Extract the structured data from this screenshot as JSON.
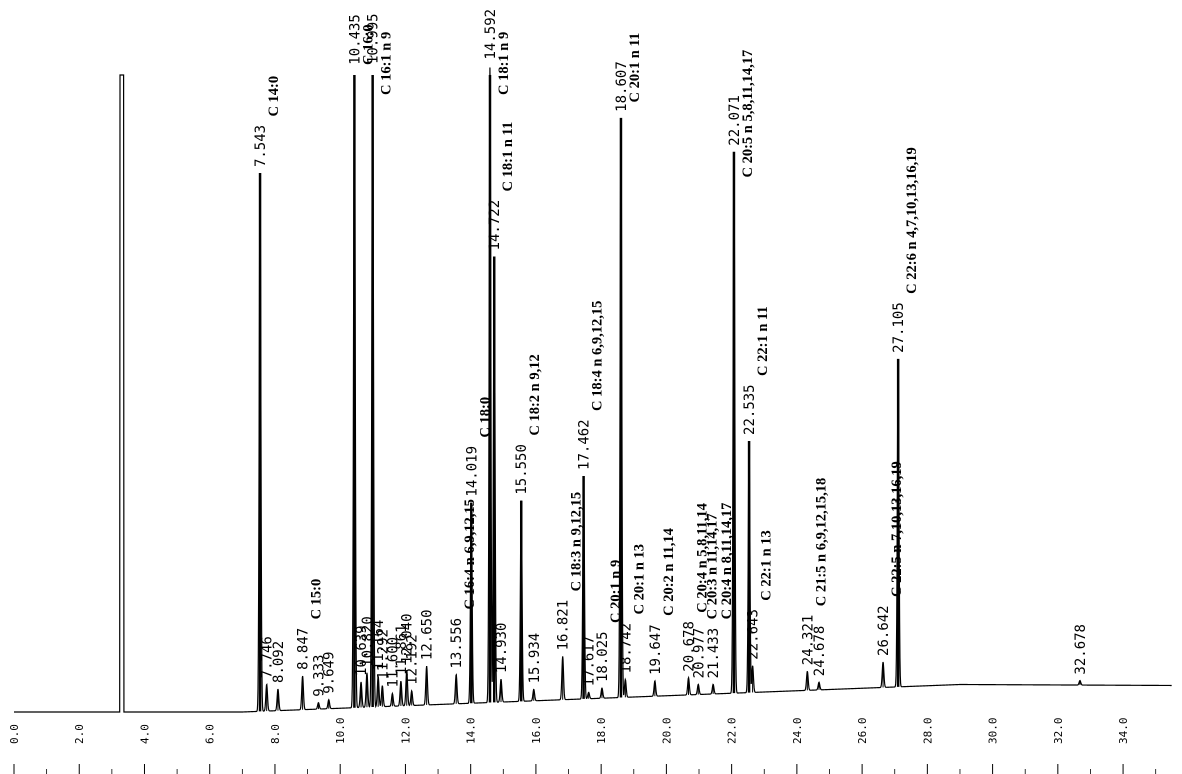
{
  "chart_data": {
    "type": "line",
    "title": "",
    "xlabel": "",
    "ylabel": "",
    "xlim": [
      0,
      35.5
    ],
    "ylim": [
      0,
      100
    ],
    "x_ticks": [
      "0.0",
      "2.0",
      "4.0",
      "6.0",
      "8.0",
      "10.0",
      "12.0",
      "14.0",
      "16.0",
      "18.0",
      "20.0",
      "22.0",
      "24.0",
      "26.0",
      "28.0",
      "30.0",
      "32.0",
      "34.0"
    ],
    "solvent_peak": {
      "rt": 3.3,
      "height": 100
    },
    "peaks": [
      {
        "rt": 7.543,
        "label": "7.543",
        "height": 84.5,
        "name": "C 14:0"
      },
      {
        "rt": 7.746,
        "label": "7.746",
        "height": 4.2,
        "name": ""
      },
      {
        "rt": 8.092,
        "label": "8.092",
        "height": 3.4,
        "name": ""
      },
      {
        "rt": 8.847,
        "label": "8.847",
        "height": 5.3,
        "name": "C 15:0"
      },
      {
        "rt": 9.333,
        "label": "9.333",
        "height": 1.0,
        "name": ""
      },
      {
        "rt": 9.649,
        "label": "9.649",
        "height": 1.4,
        "name": ""
      },
      {
        "rt": 10.435,
        "label": "10.435",
        "height": 100,
        "name": "C 16:0"
      },
      {
        "rt": 10.639,
        "label": "10.639",
        "height": 4.0,
        "name": ""
      },
      {
        "rt": 10.82,
        "label": "10.820",
        "height": 5.4,
        "name": ""
      },
      {
        "rt": 10.995,
        "label": "10.995",
        "height": 100,
        "name": "C 16:1 n 9"
      },
      {
        "rt": 11.164,
        "label": "11.164",
        "height": 4.8,
        "name": ""
      },
      {
        "rt": 11.292,
        "label": "11.292",
        "height": 3.3,
        "name": ""
      },
      {
        "rt": 11.6,
        "label": "11.600",
        "height": 2.0,
        "name": ""
      },
      {
        "rt": 11.861,
        "label": "11.861",
        "height": 3.9,
        "name": ""
      },
      {
        "rt": 12.04,
        "label": "12.040",
        "height": 5.6,
        "name": ""
      },
      {
        "rt": 12.192,
        "label": "12.192",
        "height": 2.3,
        "name": ""
      },
      {
        "rt": 12.65,
        "label": "12.650",
        "height": 6.1,
        "name": ""
      },
      {
        "rt": 13.556,
        "label": "13.556",
        "height": 4.6,
        "name": "C 16:4 n 6,9,12,15"
      },
      {
        "rt": 14.019,
        "label": "14.019",
        "height": 31.5,
        "name": "C 18:0"
      },
      {
        "rt": 14.592,
        "label": "14.592",
        "height": 100,
        "name": "C 18:1 n 9"
      },
      {
        "rt": 14.722,
        "label": "14.722",
        "height": 70.0,
        "name": "C 18:1 n 11"
      },
      {
        "rt": 14.93,
        "label": "14.930",
        "height": 3.6,
        "name": ""
      },
      {
        "rt": 15.55,
        "label": "15.550",
        "height": 31.5,
        "name": "C 18:2 n 9,12"
      },
      {
        "rt": 15.934,
        "label": "15.934",
        "height": 1.8,
        "name": ""
      },
      {
        "rt": 16.821,
        "label": "16.821",
        "height": 6.8,
        "name": "C 18:3 n 9,12,15"
      },
      {
        "rt": 17.462,
        "label": "17.462",
        "height": 35.0,
        "name": "C 18:4 n 6,9,12,15"
      },
      {
        "rt": 17.617,
        "label": "17.617",
        "height": 1.0,
        "name": ""
      },
      {
        "rt": 18.025,
        "label": "18.025",
        "height": 1.6,
        "name": "C 20:1 n 9"
      },
      {
        "rt": 18.607,
        "label": "18.607",
        "height": 91.0,
        "name": "C 20:1 n 11"
      },
      {
        "rt": 18.742,
        "label": "18.742",
        "height": 2.8,
        "name": "C 20:1 n 13"
      },
      {
        "rt": 19.647,
        "label": "19.647",
        "height": 2.4,
        "name": "C 20:2 n 11,14"
      },
      {
        "rt": 20.678,
        "label": "20.678",
        "height": 2.7,
        "name": "C 20:4 n 5,8,11,14"
      },
      {
        "rt": 20.977,
        "label": "20.977",
        "height": 1.6,
        "name": "C 20:3 n 11,14,17"
      },
      {
        "rt": 21.433,
        "label": "21.433",
        "height": 1.5,
        "name": "C 20:4 n 8,11,14,17"
      },
      {
        "rt": 22.071,
        "label": "22.071",
        "height": 85.0,
        "name": "C 20:5 n 5,8,11,14,17"
      },
      {
        "rt": 22.535,
        "label": "22.535",
        "height": 39.5,
        "name": "C 22:1 n 11"
      },
      {
        "rt": 22.643,
        "label": "22.643",
        "height": 4.2,
        "name": "C 22:1 n 13"
      },
      {
        "rt": 24.321,
        "label": "24.321",
        "height": 3.0,
        "name": "C 21:5 n 6,9,12,15,18"
      },
      {
        "rt": 24.678,
        "label": "24.678",
        "height": 1.2,
        "name": ""
      },
      {
        "rt": 26.642,
        "label": "26.642",
        "height": 4.0,
        "name": "C 22:5 n 7,10,13,16,19"
      },
      {
        "rt": 27.105,
        "label": "27.105",
        "height": 51.5,
        "name": "C 22:6 n 4,7,10,13,16,19"
      },
      {
        "rt": 32.678,
        "label": "32.678",
        "height": 0.7,
        "name": ""
      }
    ]
  },
  "colors": {
    "trace": "#000000",
    "background": "#ffffff"
  }
}
